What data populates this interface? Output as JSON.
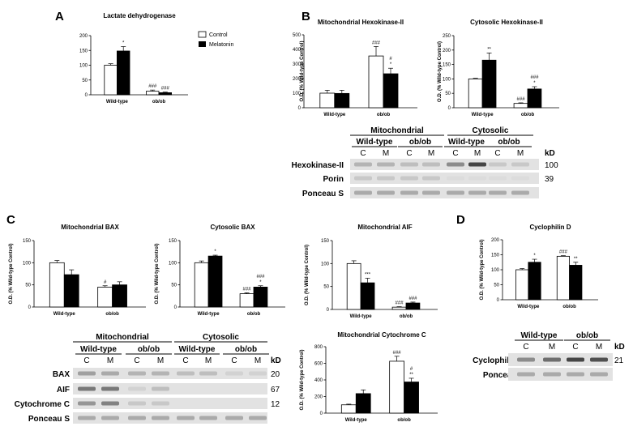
{
  "panel_labels": [
    "A",
    "B",
    "C",
    "D"
  ],
  "ylabel": "O.D. (% Wild-type Control)",
  "legend": {
    "control": "Control",
    "melatonin": "Melatonin"
  },
  "chart_data": [
    {
      "type": "bar",
      "title": "Lactate dehydrogenase",
      "categories": [
        "Wild-type",
        "ob/ob"
      ],
      "ylim": [
        0,
        200
      ],
      "yticks": [
        0,
        50,
        100,
        150,
        200
      ],
      "ylabel": "",
      "legend": [
        "Control",
        "Melatonin"
      ],
      "series": [
        {
          "name": "Control",
          "values": [
            100,
            12
          ],
          "errors": [
            5,
            4
          ],
          "labels": [
            "",
            "###"
          ]
        },
        {
          "name": "Melatonin",
          "values": [
            148,
            7
          ],
          "errors": [
            15,
            2
          ],
          "labels": [
            "*",
            "###"
          ]
        }
      ]
    },
    {
      "type": "bar",
      "title": "Mitochondrial Hexokinase-II",
      "categories": [
        "Wild-type",
        "ob/ob"
      ],
      "ylim": [
        0,
        500
      ],
      "yticks": [
        0,
        100,
        200,
        300,
        400,
        500
      ],
      "ylabel": "O.D. (% Wild-type Control)",
      "series": [
        {
          "name": "Control",
          "values": [
            100,
            355
          ],
          "errors": [
            20,
            65
          ],
          "labels": [
            "",
            "###"
          ]
        },
        {
          "name": "Melatonin",
          "values": [
            98,
            233
          ],
          "errors": [
            22,
            38
          ],
          "labels": [
            "",
            "#\n*"
          ]
        }
      ]
    },
    {
      "type": "bar",
      "title": "Cytosolic Hexokinase-II",
      "categories": [
        "Wild-type",
        "ob/ob"
      ],
      "ylim": [
        0,
        250
      ],
      "yticks": [
        0,
        50,
        100,
        150,
        200,
        250
      ],
      "ylabel": "O.D. (% Wild-type Control)",
      "series": [
        {
          "name": "Control",
          "values": [
            100,
            15
          ],
          "errors": [
            2,
            2
          ],
          "labels": [
            "",
            "###"
          ]
        },
        {
          "name": "Melatonin",
          "values": [
            165,
            65
          ],
          "errors": [
            25,
            8
          ],
          "labels": [
            "**",
            "###\n*"
          ]
        }
      ]
    },
    {
      "type": "bar",
      "title": "Mitochondrial BAX",
      "categories": [
        "Wild-type",
        "ob/ob"
      ],
      "ylim": [
        0,
        150
      ],
      "yticks": [
        0,
        50,
        100,
        150
      ],
      "ylabel": "O.D. (% Wild-type Control)",
      "series": [
        {
          "name": "Control",
          "values": [
            100,
            45
          ],
          "errors": [
            5,
            3
          ],
          "labels": [
            "",
            "#"
          ]
        },
        {
          "name": "Melatonin",
          "values": [
            73,
            50
          ],
          "errors": [
            11,
            7
          ],
          "labels": [
            "",
            ""
          ]
        }
      ]
    },
    {
      "type": "bar",
      "title": "Cytosolic BAX",
      "categories": [
        "Wild-type",
        "ob/ob"
      ],
      "ylim": [
        0,
        150
      ],
      "yticks": [
        0,
        50,
        100,
        150
      ],
      "ylabel": "O.D. (% Wild-type Control)",
      "series": [
        {
          "name": "Control",
          "values": [
            100,
            30
          ],
          "errors": [
            4,
            2
          ],
          "labels": [
            "",
            "###"
          ]
        },
        {
          "name": "Melatonin",
          "values": [
            115,
            45
          ],
          "errors": [
            2,
            3
          ],
          "labels": [
            "*",
            "###\n*"
          ]
        }
      ]
    },
    {
      "type": "bar",
      "title": "Mitochondrial AIF",
      "categories": [
        "Wild-type",
        "ob/ob"
      ],
      "ylim": [
        0,
        150
      ],
      "yticks": [
        0,
        50,
        100,
        150
      ],
      "ylabel": "O.D. (% Wild-type Control)",
      "series": [
        {
          "name": "Control",
          "values": [
            100,
            5
          ],
          "errors": [
            6,
            1
          ],
          "labels": [
            "",
            "###"
          ]
        },
        {
          "name": "Melatonin",
          "values": [
            58,
            14
          ],
          "errors": [
            10,
            2
          ],
          "labels": [
            "***",
            "###"
          ]
        }
      ]
    },
    {
      "type": "bar",
      "title": "Mitochondrial Cytochrome C",
      "categories": [
        "Wild-type",
        "ob/ob"
      ],
      "ylim": [
        0,
        800
      ],
      "yticks": [
        0,
        200,
        400,
        600,
        800
      ],
      "ylabel": "O.D. (% Wild-type Control)",
      "series": [
        {
          "name": "Control",
          "values": [
            100,
            625
          ],
          "errors": [
            8,
            60
          ],
          "labels": [
            "",
            "###"
          ]
        },
        {
          "name": "Melatonin",
          "values": [
            235,
            375
          ],
          "errors": [
            45,
            45
          ],
          "labels": [
            "",
            "#\n**"
          ]
        }
      ]
    },
    {
      "type": "bar",
      "title": "Cyclophilin D",
      "categories": [
        "Wild-type",
        "ob/ob"
      ],
      "ylim": [
        0,
        200
      ],
      "yticks": [
        0,
        50,
        100,
        150,
        200
      ],
      "ylabel": "O.D. (% Wild-type Control)",
      "series": [
        {
          "name": "Control",
          "values": [
            100,
            145
          ],
          "errors": [
            4,
            2
          ],
          "labels": [
            "",
            "###"
          ]
        },
        {
          "name": "Melatonin",
          "values": [
            125,
            115
          ],
          "errors": [
            10,
            10
          ],
          "labels": [
            "*",
            "**"
          ]
        }
      ]
    }
  ],
  "blots": {
    "B": {
      "groups": [
        "Mitochondrial",
        "Cytosolic"
      ],
      "subgroups": [
        "Wild-type",
        "ob/ob",
        "Wild-type",
        "ob/ob"
      ],
      "lanes": [
        "C",
        "M",
        "C",
        "M",
        "C",
        "M",
        "C",
        "M"
      ],
      "kd_header": "kD",
      "rows": [
        {
          "label": "Hexokinase-II",
          "kd": "100"
        },
        {
          "label": "Porin",
          "kd": "39"
        },
        {
          "label": "Ponceau S",
          "kd": ""
        }
      ]
    },
    "C": {
      "groups": [
        "Mitochondrial",
        "Cytosolic"
      ],
      "subgroups": [
        "Wild-type",
        "ob/ob",
        "Wild-type",
        "ob/ob"
      ],
      "lanes": [
        "C",
        "M",
        "C",
        "M",
        "C",
        "M",
        "C",
        "M"
      ],
      "kd_header": "kD",
      "rows": [
        {
          "label": "BAX",
          "kd": "20"
        },
        {
          "label": "AIF",
          "kd": "67"
        },
        {
          "label": "Cytochrome C",
          "kd": "12"
        },
        {
          "label": "Ponceau S",
          "kd": ""
        }
      ]
    },
    "D": {
      "groups": [],
      "subgroups": [
        "Wild-type",
        "ob/ob"
      ],
      "lanes": [
        "C",
        "M",
        "C",
        "M"
      ],
      "kd_header": "kD",
      "rows": [
        {
          "label": "Cyclophilin D",
          "kd": "21"
        },
        {
          "label": "Ponceau S",
          "kd": ""
        }
      ]
    }
  }
}
